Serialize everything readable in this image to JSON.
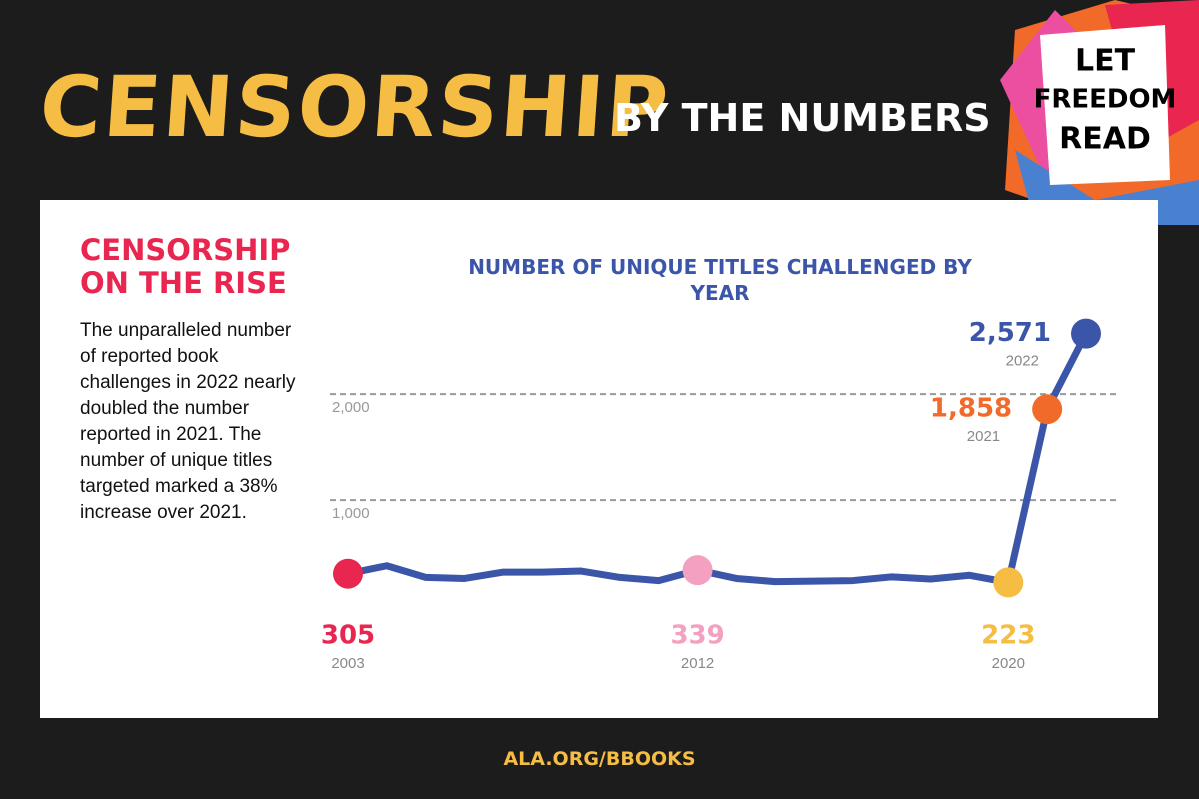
{
  "header": {
    "title": "CENSORSHIP",
    "subtitle": "BY THE NUMBERS"
  },
  "logo": {
    "lines": [
      "LET",
      "FREEDOM",
      "READ"
    ]
  },
  "sidebar": {
    "title": "CENSORSHIP ON THE RISE",
    "text": "The unparalleled number of reported book challenges in 2022 nearly doubled the number reported in 2021. The number of unique titles targeted marked a 38% increase over 2021."
  },
  "footer": {
    "link": "ALA.ORG/BBOOKS"
  },
  "chart_data": {
    "type": "line",
    "title": "NUMBER OF UNIQUE TITLES CHALLENGED BY YEAR",
    "categories": [
      "2003",
      null,
      null,
      null,
      null,
      null,
      null,
      null,
      null,
      "2012",
      null,
      null,
      null,
      null,
      null,
      null,
      null,
      "2020",
      "2021",
      "2022"
    ],
    "values": [
      305,
      380,
      270,
      260,
      320,
      320,
      330,
      270,
      240,
      339,
      260,
      230,
      235,
      240,
      275,
      255,
      290,
      223,
      1858,
      2571
    ],
    "value_labels": [
      "305",
      null,
      null,
      null,
      null,
      null,
      null,
      null,
      null,
      "339",
      null,
      null,
      null,
      null,
      null,
      null,
      null,
      "223",
      "1,858",
      "2,571"
    ],
    "point_colors": [
      "#e8264f",
      null,
      null,
      null,
      null,
      null,
      null,
      null,
      null,
      "#f4a0c0",
      null,
      null,
      null,
      null,
      null,
      null,
      null,
      "#f6bd45",
      "#f26a2a",
      "#3b55a8"
    ],
    "color": "#3b55a8",
    "ylim": [
      0,
      2700
    ],
    "yticks": [
      {
        "value": 1000,
        "label": "1,000"
      },
      {
        "value": 2000,
        "label": "2,000"
      }
    ],
    "grid": true
  }
}
